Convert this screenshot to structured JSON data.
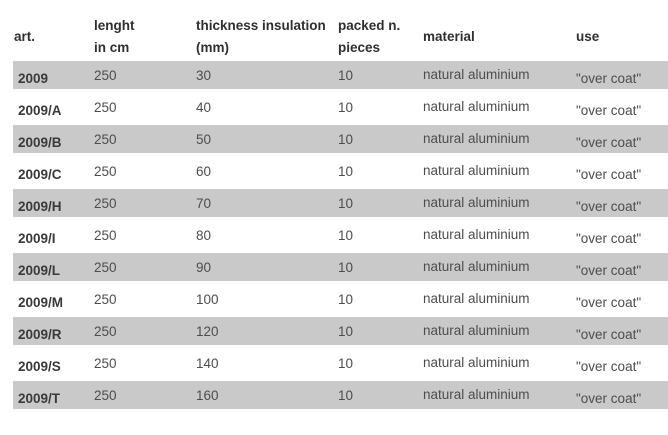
{
  "colors": {
    "page_bg": "#ffffff",
    "stripe": "#c9c9c9",
    "header_text": "#2f2f2f",
    "body_text": "#4d4d4d",
    "art_text": "#3a3a3a"
  },
  "table": {
    "header": {
      "art": "art.",
      "length_line1": "lenght",
      "length_line2": "in cm",
      "thickness_line1": "thickness insulation",
      "thickness_line2": "(mm)",
      "packed_line1": "packed n.",
      "packed_line2": "pieces",
      "material": "material",
      "use": "use"
    },
    "rows": [
      {
        "art": "2009",
        "length": "250",
        "thickness": "30",
        "packed": "10",
        "material": "natural aluminium",
        "use": "\"over coat\""
      },
      {
        "art": "2009/A",
        "length": "250",
        "thickness": "40",
        "packed": "10",
        "material": "natural aluminium",
        "use": "\"over coat\""
      },
      {
        "art": "2009/B",
        "length": "250",
        "thickness": "50",
        "packed": "10",
        "material": "natural aluminium",
        "use": "\"over coat\""
      },
      {
        "art": "2009/C",
        "length": "250",
        "thickness": "60",
        "packed": "10",
        "material": "natural aluminium",
        "use": "\"over coat\""
      },
      {
        "art": "2009/H",
        "length": "250",
        "thickness": "70",
        "packed": "10",
        "material": "natural aluminium",
        "use": "\"over coat\""
      },
      {
        "art": "2009/I",
        "length": "250",
        "thickness": "80",
        "packed": "10",
        "material": "natural aluminium",
        "use": "\"over coat\""
      },
      {
        "art": "2009/L",
        "length": "250",
        "thickness": "90",
        "packed": "10",
        "material": "natural aluminium",
        "use": "\"over coat\""
      },
      {
        "art": "2009/M",
        "length": "250",
        "thickness": "100",
        "packed": "10",
        "material": "natural aluminium",
        "use": "\"over coat\""
      },
      {
        "art": "2009/R",
        "length": "250",
        "thickness": "120",
        "packed": "10",
        "material": "natural aluminium",
        "use": "\"over coat\""
      },
      {
        "art": "2009/S",
        "length": "250",
        "thickness": "140",
        "packed": "10",
        "material": "natural aluminium",
        "use": "\"over coat\""
      },
      {
        "art": "2009/T",
        "length": "250",
        "thickness": "160",
        "packed": "10",
        "material": "natural aluminium",
        "use": "\"over coat\""
      }
    ]
  }
}
